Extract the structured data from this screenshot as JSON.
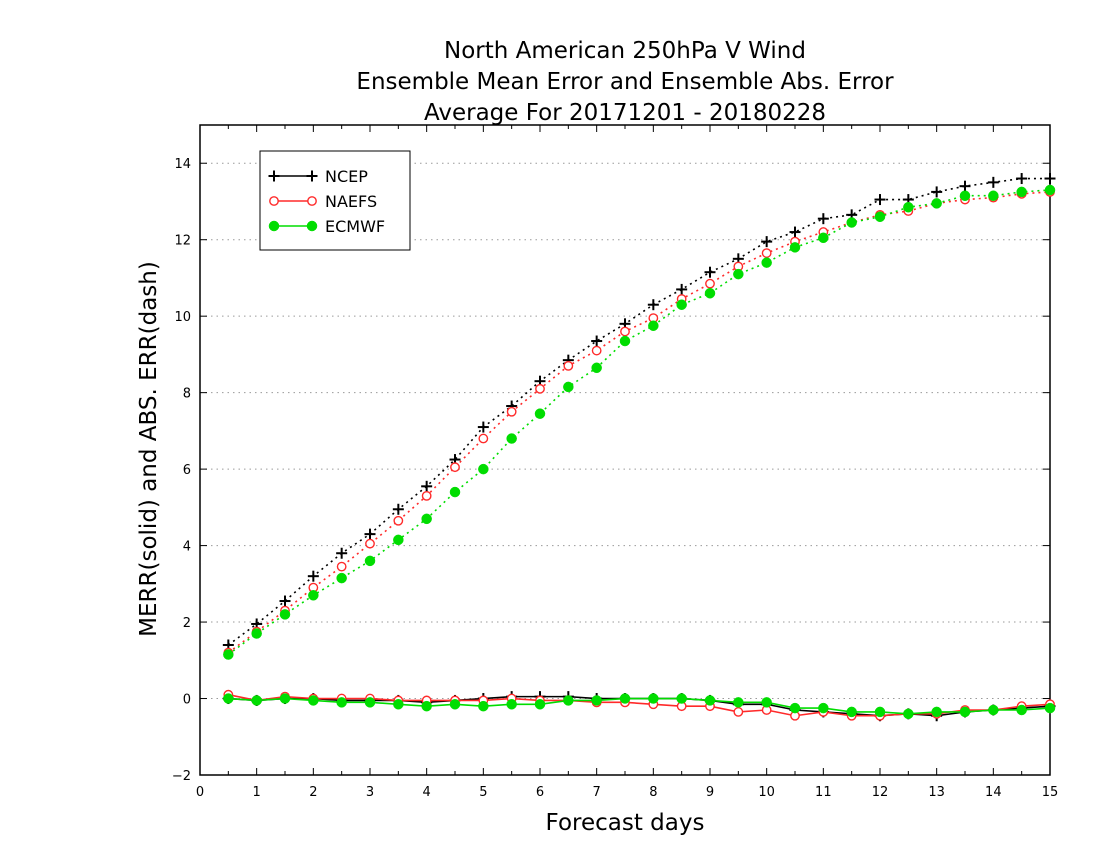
{
  "chart_data": {
    "type": "line",
    "title": [
      "North American 250hPa V Wind",
      "Ensemble Mean Error and Ensemble Abs. Error",
      "Average For 20171201 - 20180228"
    ],
    "xlabel": "Forecast days",
    "ylabel": "MERR(solid) and ABS. ERR(dash)",
    "xlim": [
      0,
      15
    ],
    "ylim": [
      -2,
      15
    ],
    "xticks": [
      "0",
      "1",
      "2",
      "3",
      "4",
      "5",
      "6",
      "7",
      "8",
      "9",
      "10",
      "11",
      "12",
      "13",
      "14",
      "15"
    ],
    "yticks": [
      "−2",
      "0",
      "2",
      "4",
      "6",
      "8",
      "10",
      "12",
      "14"
    ],
    "grid": "horizontal dotted",
    "legend_placement": "top-left",
    "x": [
      0.5,
      1,
      1.5,
      2,
      2.5,
      3,
      3.5,
      4,
      4.5,
      5,
      5.5,
      6,
      6.5,
      7,
      7.5,
      8,
      8.5,
      9,
      9.5,
      10,
      10.5,
      11,
      11.5,
      12,
      12.5,
      13,
      13.5,
      14,
      14.5,
      15
    ],
    "series": [
      {
        "name": "NCEP",
        "color": "#000000",
        "marker": "plus",
        "abs_err": [
          1.4,
          1.95,
          2.55,
          3.2,
          3.8,
          4.3,
          4.95,
          5.55,
          6.25,
          7.1,
          7.65,
          8.3,
          8.85,
          9.35,
          9.8,
          10.3,
          10.7,
          11.15,
          11.5,
          11.95,
          12.2,
          12.55,
          12.65,
          13.05,
          13.05,
          13.25,
          13.4,
          13.5,
          13.6,
          13.6
        ],
        "mean_err": [
          0.0,
          -0.05,
          0.0,
          0.0,
          -0.05,
          -0.05,
          -0.05,
          -0.1,
          -0.05,
          0.0,
          0.05,
          0.05,
          0.05,
          0.0,
          0.0,
          0.0,
          0.0,
          -0.05,
          -0.15,
          -0.15,
          -0.3,
          -0.35,
          -0.4,
          -0.45,
          -0.4,
          -0.45,
          -0.35,
          -0.3,
          -0.25,
          -0.2
        ]
      },
      {
        "name": "NAEFS",
        "color": "#ff2a2a",
        "marker": "open-circle",
        "abs_err": [
          1.2,
          1.75,
          2.3,
          2.9,
          3.45,
          4.05,
          4.65,
          5.3,
          6.05,
          6.8,
          7.5,
          8.1,
          8.7,
          9.1,
          9.6,
          9.95,
          10.45,
          10.85,
          11.3,
          11.65,
          11.95,
          12.2,
          12.45,
          12.65,
          12.75,
          12.95,
          13.05,
          13.1,
          13.2,
          13.25
        ],
        "mean_err": [
          0.1,
          -0.05,
          0.05,
          0.0,
          0.0,
          0.0,
          -0.05,
          -0.05,
          -0.05,
          -0.05,
          0.0,
          -0.05,
          -0.05,
          -0.1,
          -0.1,
          -0.15,
          -0.2,
          -0.2,
          -0.35,
          -0.3,
          -0.45,
          -0.35,
          -0.45,
          -0.45,
          -0.4,
          -0.4,
          -0.3,
          -0.3,
          -0.2,
          -0.15
        ]
      },
      {
        "name": "ECMWF",
        "color": "#00dd00",
        "marker": "filled-circle",
        "abs_err": [
          1.15,
          1.7,
          2.2,
          2.7,
          3.15,
          3.6,
          4.15,
          4.7,
          5.4,
          6.0,
          6.8,
          7.45,
          8.15,
          8.65,
          9.35,
          9.75,
          10.3,
          10.6,
          11.1,
          11.4,
          11.8,
          12.05,
          12.45,
          12.6,
          12.85,
          12.95,
          13.15,
          13.15,
          13.25,
          13.3
        ],
        "mean_err": [
          0.0,
          -0.05,
          0.0,
          -0.05,
          -0.1,
          -0.1,
          -0.15,
          -0.2,
          -0.15,
          -0.2,
          -0.15,
          -0.15,
          -0.05,
          -0.05,
          0.0,
          0.0,
          0.0,
          -0.05,
          -0.1,
          -0.1,
          -0.25,
          -0.25,
          -0.35,
          -0.35,
          -0.4,
          -0.35,
          -0.35,
          -0.3,
          -0.3,
          -0.25
        ]
      }
    ]
  }
}
